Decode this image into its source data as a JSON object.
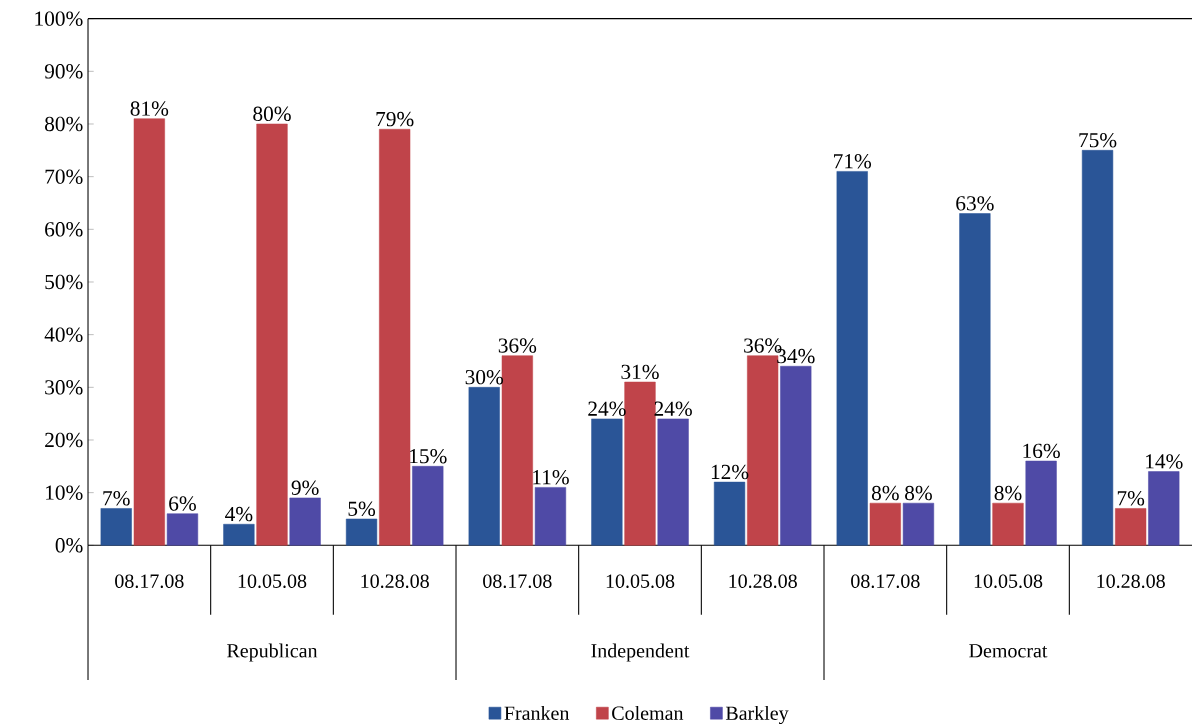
{
  "chart_data": {
    "type": "bar",
    "categories": [
      "08.17.08",
      "10.05.08",
      "10.28.08",
      "08.17.08",
      "10.05.08",
      "10.28.08",
      "08.17.08",
      "10.05.08",
      "10.28.08"
    ],
    "series": [
      {
        "name": "Franken",
        "color": "#2a5597",
        "values": [
          7,
          4,
          5,
          30,
          24,
          12,
          71,
          63,
          75
        ],
        "value_labels": [
          "7%",
          "4%",
          "5%",
          "30%",
          "24%",
          "12%",
          "71%",
          "63%",
          "75%"
        ]
      },
      {
        "name": "Coleman",
        "color": "#c0444a",
        "values": [
          81,
          80,
          79,
          36,
          31,
          36,
          8,
          8,
          7
        ],
        "value_labels": [
          "81%",
          "80%",
          "79%",
          "36%",
          "31%",
          "36%",
          "8%",
          "8%",
          "7%"
        ]
      },
      {
        "name": "Barkley",
        "color": "#4f4aa6",
        "values": [
          6,
          9,
          15,
          11,
          24,
          34,
          8,
          16,
          14
        ],
        "value_labels": [
          "6%",
          "9%",
          "15%",
          "11%",
          "24%",
          "34%",
          "8%",
          "16%",
          "14%"
        ]
      }
    ],
    "annotations": [
      "Republican",
      "Independent",
      "Democrat"
    ],
    "ylim": [
      0,
      100
    ],
    "yticks": [
      {
        "value": 0,
        "label": "0%"
      },
      {
        "value": 10,
        "label": "10%"
      },
      {
        "value": 20,
        "label": "20%"
      },
      {
        "value": 30,
        "label": "30%"
      },
      {
        "value": 40,
        "label": "40%"
      },
      {
        "value": 50,
        "label": "50%"
      },
      {
        "value": 60,
        "label": "60%"
      },
      {
        "value": 70,
        "label": "70%"
      },
      {
        "value": 80,
        "label": "80%"
      },
      {
        "value": 90,
        "label": "90%"
      },
      {
        "value": 100,
        "label": "100%"
      }
    ],
    "legend": "bottom"
  }
}
